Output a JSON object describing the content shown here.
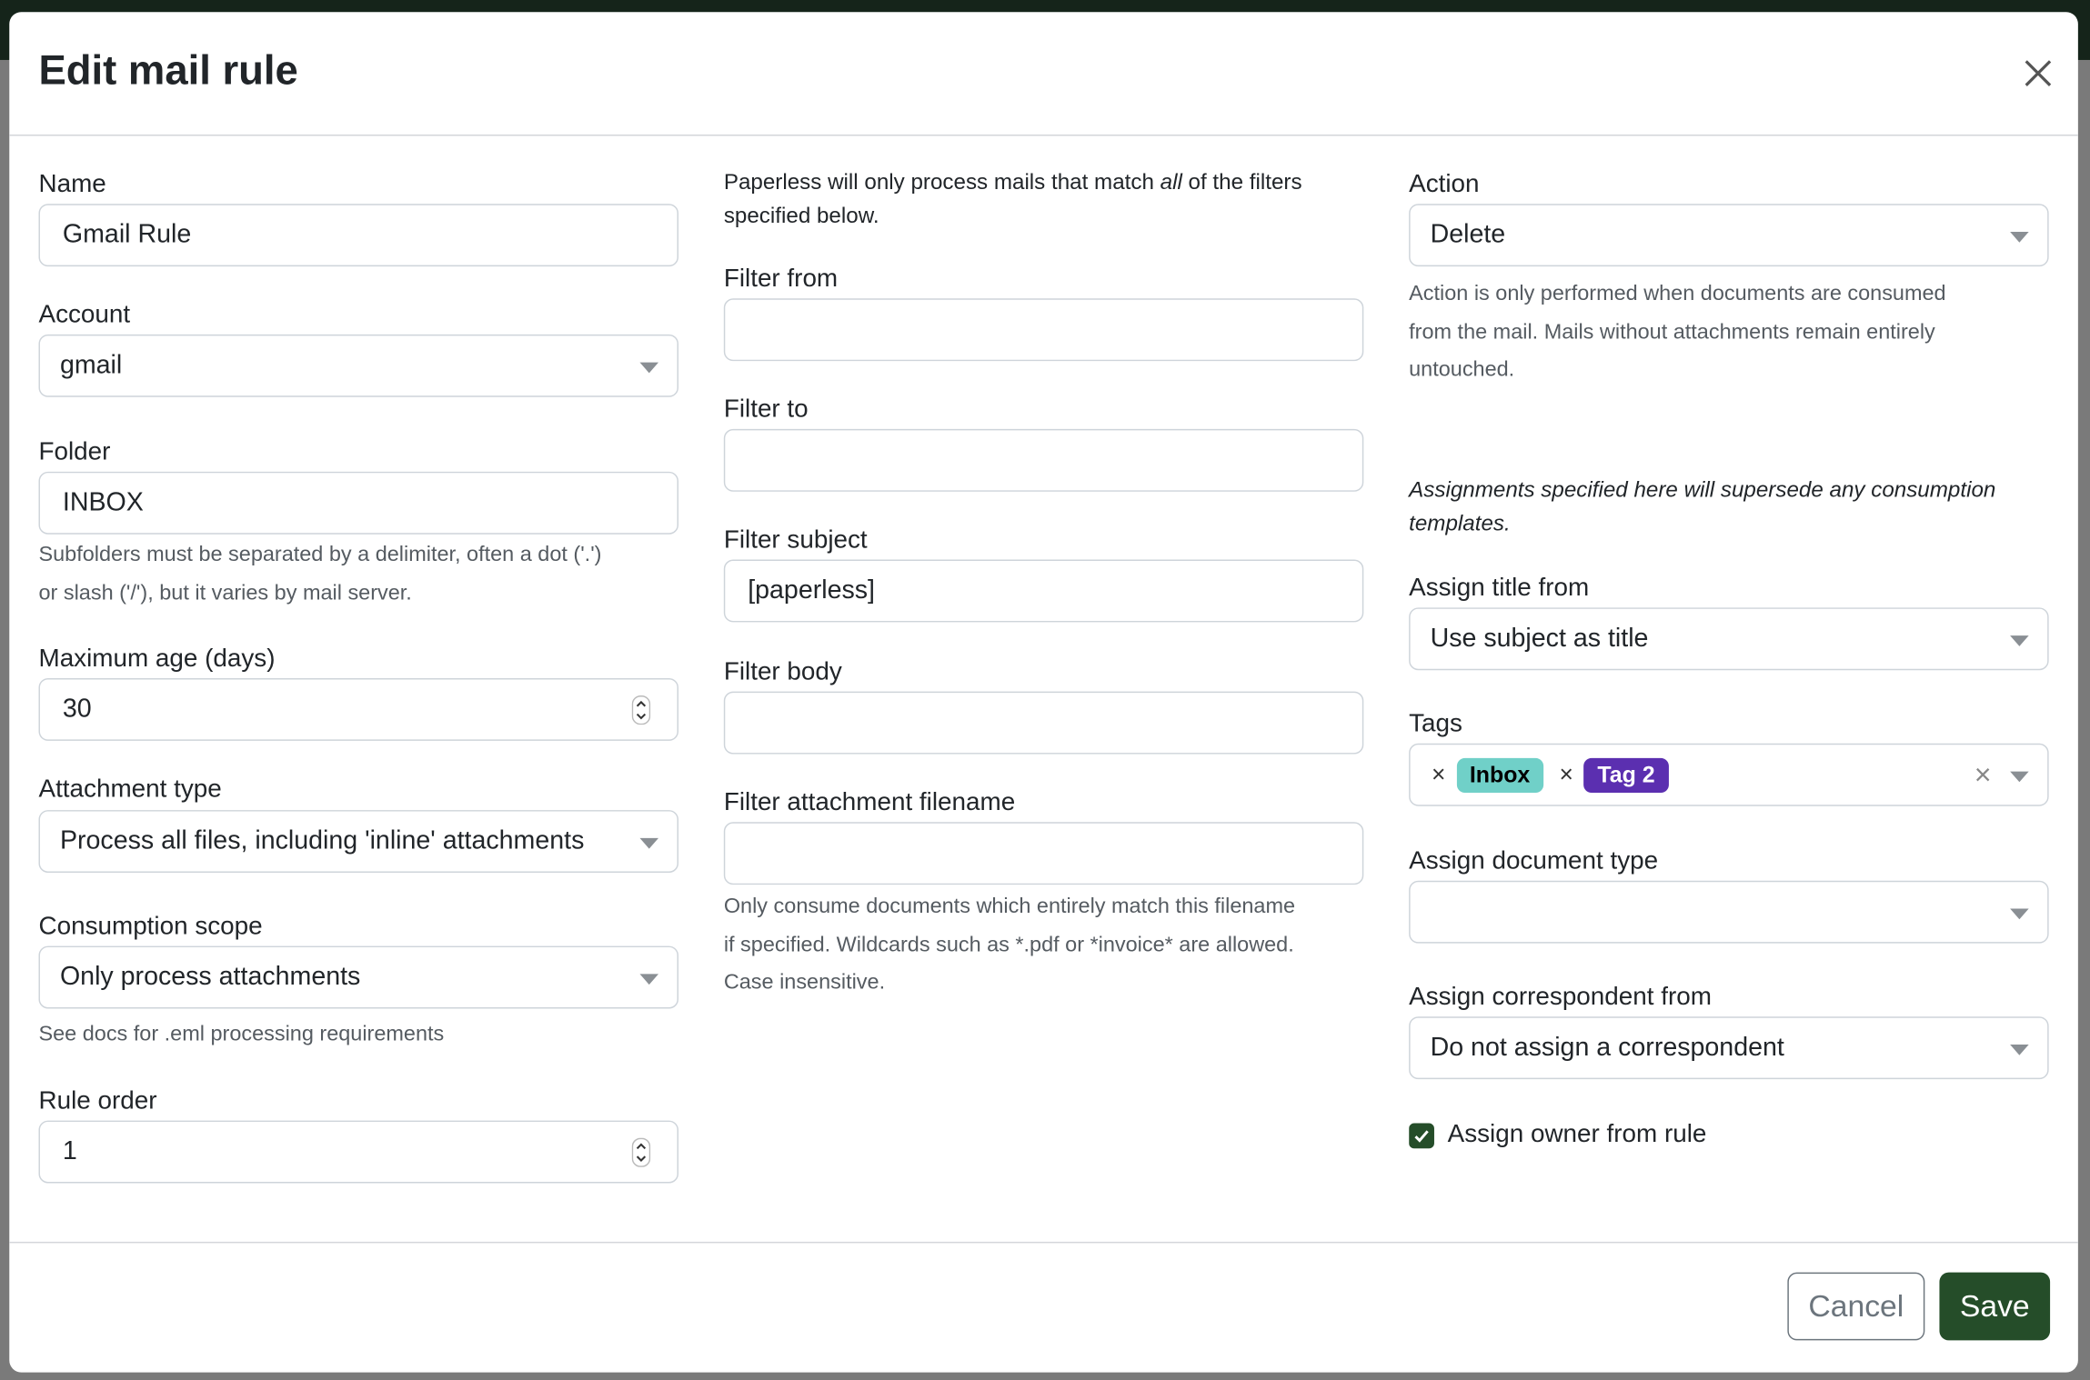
{
  "modal": {
    "title": "Edit mail rule",
    "close_icon": "x-icon",
    "cancel_label": "Cancel",
    "save_label": "Save"
  },
  "left": {
    "name": {
      "label": "Name",
      "value": "Gmail Rule"
    },
    "account": {
      "label": "Account",
      "value": "gmail"
    },
    "folder": {
      "label": "Folder",
      "value": "INBOX",
      "help1": "Subfolders must be separated by a delimiter, often a dot ('.')",
      "help2": "or slash ('/'), but it varies by mail server."
    },
    "max_age": {
      "label": "Maximum age (days)",
      "value": "30"
    },
    "attachment_type": {
      "label": "Attachment type",
      "value": "Process all files, including 'inline' attachments"
    },
    "consumption_scope": {
      "label": "Consumption scope",
      "value": "Only process attachments",
      "help": "See docs for .eml processing requirements"
    },
    "rule_order": {
      "label": "Rule order",
      "value": "1"
    }
  },
  "middle": {
    "intro_pre": "Paperless will only process mails that match ",
    "intro_em": "all",
    "intro_post": " of the filters",
    "intro_line2": "specified below.",
    "filter_from": {
      "label": "Filter from",
      "value": ""
    },
    "filter_to": {
      "label": "Filter to",
      "value": ""
    },
    "filter_subject": {
      "label": "Filter subject",
      "value": "[paperless]"
    },
    "filter_body": {
      "label": "Filter body",
      "value": ""
    },
    "filter_attachment": {
      "label": "Filter attachment filename",
      "value": "",
      "help1": "Only consume documents which entirely match this filename",
      "help2": "if specified. Wildcards such as *.pdf or *invoice* are allowed.",
      "help3": "Case insensitive."
    }
  },
  "right": {
    "action": {
      "label": "Action",
      "value": "Delete",
      "help1": "Action is only performed when documents are consumed",
      "help2": "from the mail. Mails without attachments remain entirely",
      "help3": "untouched."
    },
    "assign_note1": "Assignments specified here will supersede any consumption",
    "assign_note2": "templates.",
    "assign_title": {
      "label": "Assign title from",
      "value": "Use subject as title"
    },
    "tags": {
      "label": "Tags",
      "items": [
        {
          "label": "Inbox",
          "bg": "#70d0c8",
          "fg": "#000000"
        },
        {
          "label": "Tag 2",
          "bg": "#5b2fb0",
          "fg": "#ffffff"
        }
      ]
    },
    "doc_type": {
      "label": "Assign document type",
      "value": ""
    },
    "correspondent": {
      "label": "Assign correspondent from",
      "value": "Do not assign a correspondent"
    },
    "owner": {
      "label": "Assign owner from rule",
      "checked": true
    }
  },
  "colors": {
    "primary": "#254d29",
    "topbar": "#15241a"
  }
}
